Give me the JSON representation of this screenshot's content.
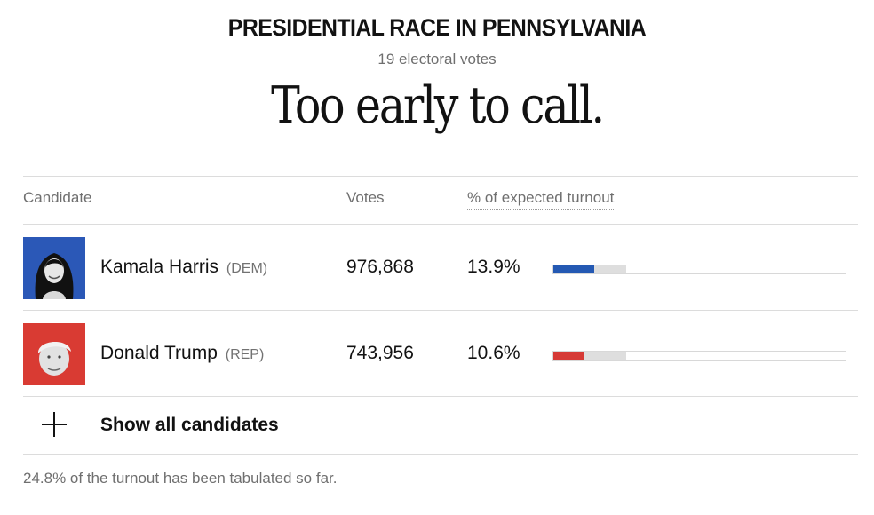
{
  "race": {
    "title": "PRESIDENTIAL RACE IN PENNSYLVANIA",
    "electoral_votes": "19 electoral votes",
    "status": "Too early to call."
  },
  "table": {
    "headers": {
      "candidate": "Candidate",
      "votes": "Votes",
      "turnout": "% of expected turnout"
    },
    "rows": [
      {
        "name": "Kamala Harris",
        "party": "(DEM)",
        "votes": "976,868",
        "pct": "13.9%",
        "pct_value": 13.9,
        "color": "#2459b3",
        "photo_bg": "#2b58b7"
      },
      {
        "name": "Donald Trump",
        "party": "(REP)",
        "votes": "743,956",
        "pct": "10.6%",
        "pct_value": 10.6,
        "color": "#d63a36",
        "photo_bg": "#d93b33"
      }
    ],
    "expected_tabulated_pct": 24.8
  },
  "show_all": {
    "label": "Show all candidates"
  },
  "footnote": "24.8% of the turnout has been tabulated so far."
}
